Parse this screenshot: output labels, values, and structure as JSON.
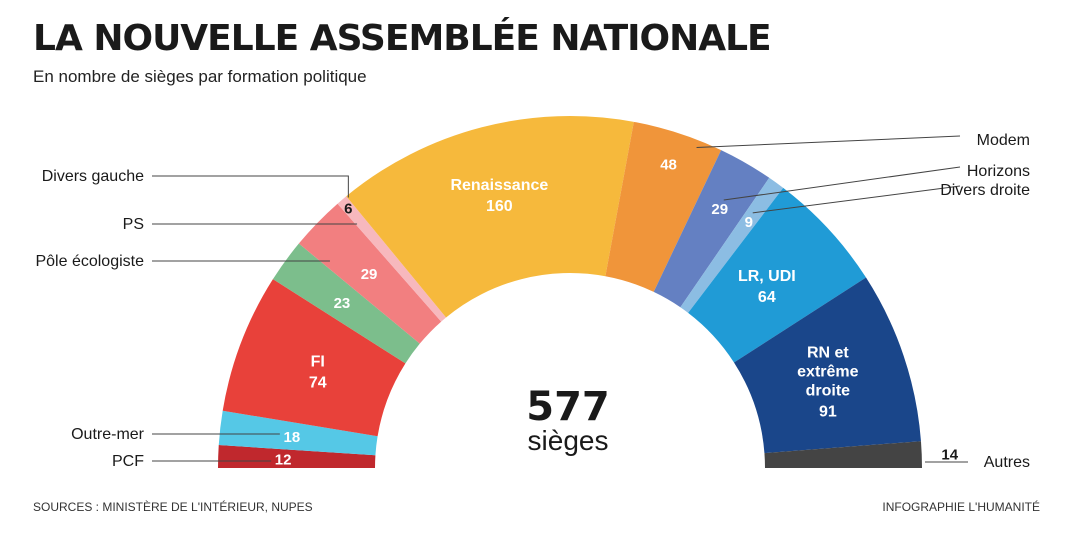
{
  "title": "LA NOUVELLE ASSEMBLÉE NATIONALE",
  "subtitle": "En nombre de sièges par formation politique",
  "sources": "SOURCES : MINISTÈRE DE L'INTÉRIEUR, NUPES",
  "credit": "INFOGRAPHIE L'HUMANITÉ",
  "chart_data": {
    "type": "pie",
    "total": 577,
    "total_number": "577",
    "total_unit": "sièges",
    "series": [
      {
        "name": "PCF",
        "value": 12,
        "color": "#c0282d",
        "label_color": "#ffffff",
        "external": true
      },
      {
        "name": "Outre-mer",
        "value": 18,
        "color": "#55c8e6",
        "label_color": "#ffffff",
        "external": true
      },
      {
        "name": "FI",
        "value": 74,
        "color": "#e8413a",
        "label_color": "#ffffff",
        "external": false
      },
      {
        "name": "Pôle écologiste",
        "value": 23,
        "color": "#7cbe8c",
        "label_color": "#ffffff",
        "external": true
      },
      {
        "name": "PS",
        "value": 29,
        "color": "#f27f80",
        "label_color": "#ffffff",
        "external": true
      },
      {
        "name": "Divers gauche",
        "value": 6,
        "color": "#f7b8bd",
        "label_color": "#1a1a1a",
        "external": true
      },
      {
        "name": "Renaissance",
        "value": 160,
        "color": "#f6b93c",
        "label_color": "#ffffff",
        "external": false
      },
      {
        "name": "Modem",
        "value": 48,
        "color": "#f0953a",
        "label_color": "#ffffff",
        "external": true
      },
      {
        "name": "Horizons",
        "value": 29,
        "color": "#6480c2",
        "label_color": "#ffffff",
        "external": true
      },
      {
        "name": "Divers droite",
        "value": 9,
        "color": "#8cbde3",
        "label_color": "#ffffff",
        "external": true
      },
      {
        "name": "LR, UDI",
        "value": 64,
        "color": "#209bd6",
        "label_color": "#ffffff",
        "external": false
      },
      {
        "name": "RN et extrême droite",
        "value": 91,
        "color": "#1a468a",
        "label_color": "#ffffff",
        "external": false
      },
      {
        "name": "Autres",
        "value": 14,
        "color": "#444444",
        "label_color": "#1a1a1a",
        "external": true
      }
    ]
  }
}
